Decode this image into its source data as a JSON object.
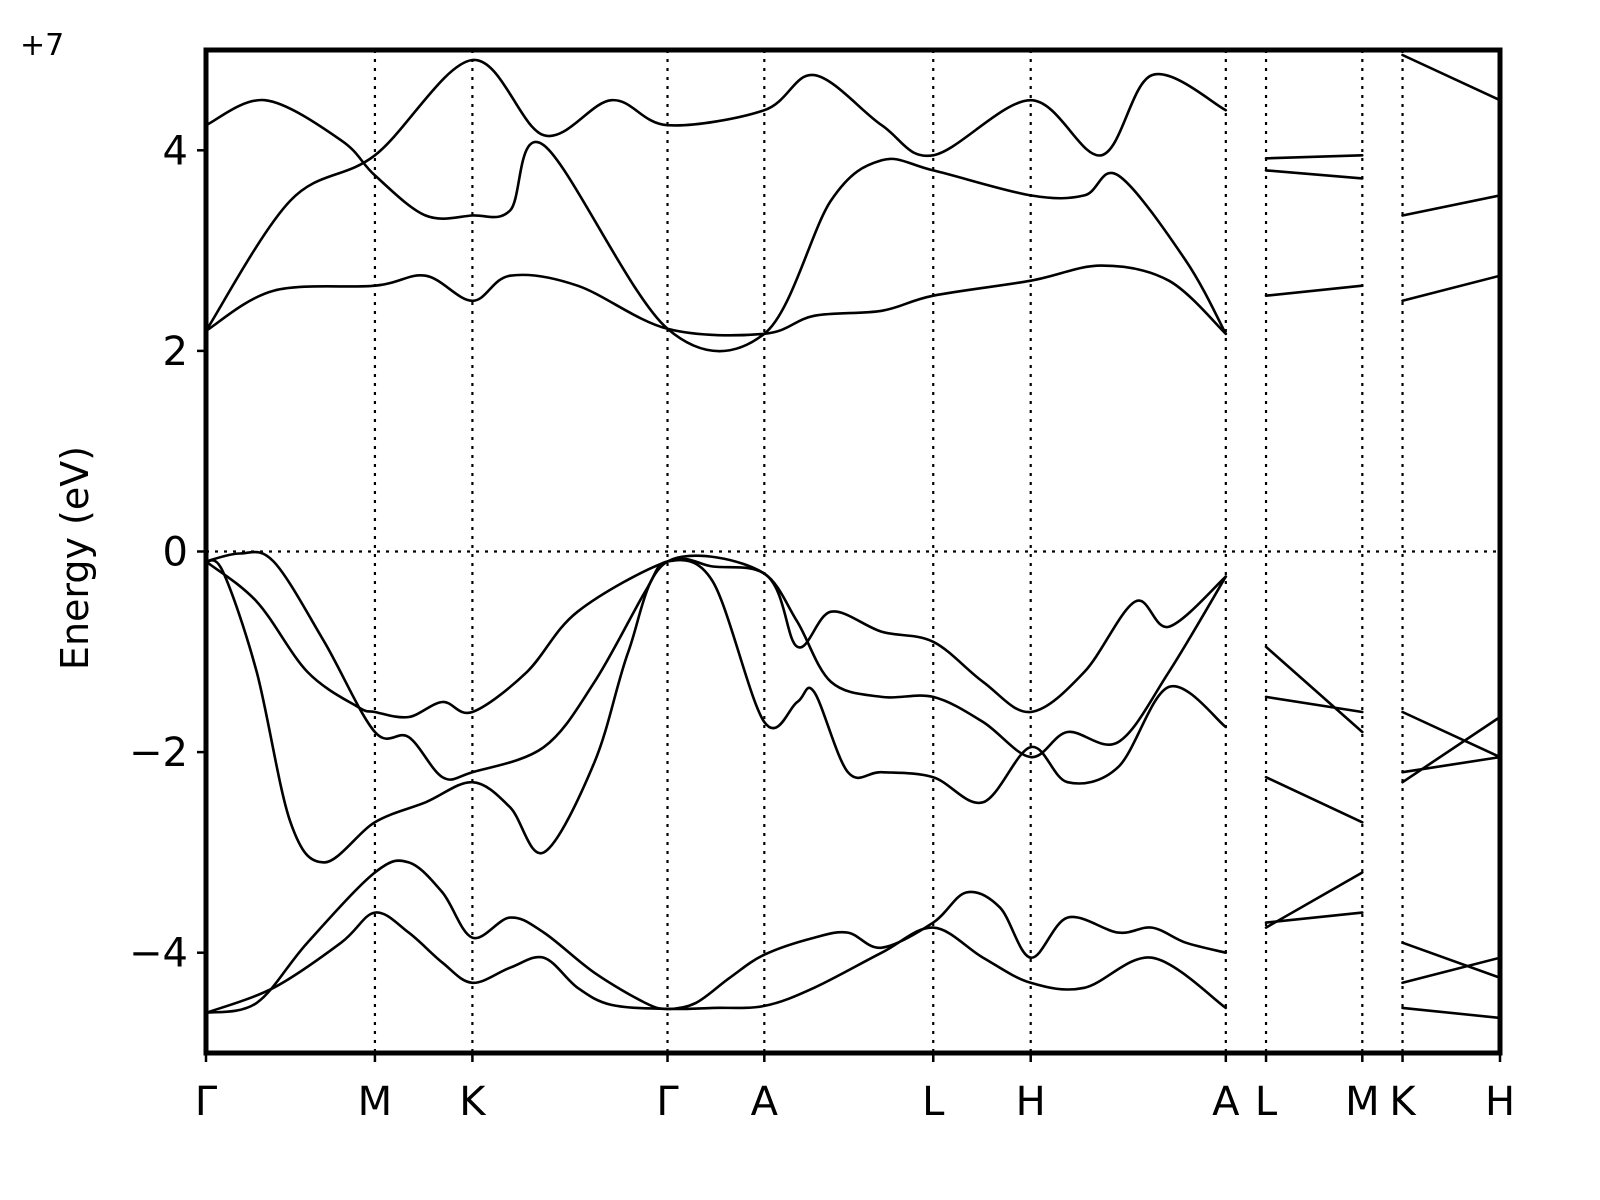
{
  "chart_data": {
    "type": "line",
    "title": "",
    "ylabel": "Energy (eV)",
    "xlabel": "",
    "y_offset_label": "+7",
    "ylim": [
      -5,
      5
    ],
    "yticks": [
      -4,
      -2,
      0,
      2,
      4
    ],
    "ytick_labels": [
      "−4",
      "−2",
      "0",
      "2",
      "4"
    ],
    "fermi_level": 0,
    "grid": false,
    "kpath_labels": [
      "Γ",
      "M",
      "K",
      "Γ",
      "A",
      "L",
      "H",
      "A",
      "L",
      "M",
      "K",
      "H"
    ],
    "kpath_positions": [
      0,
      1,
      1.577,
      2.732,
      3.305,
      4.305,
      4.882,
      6.037,
      6.275,
      6.845,
      7.083,
      7.66
    ],
    "path_breaks": [
      [
        6.037,
        6.275
      ],
      [
        6.845,
        7.083
      ]
    ],
    "x_range": [
      0,
      7.66
    ],
    "segments": [
      {
        "name": "Γ-M-K-Γ-A-L-H-A",
        "bands": [
          [
            [
              0,
              -4.6
            ],
            [
              0.4,
              -4.35
            ],
            [
              0.8,
              -3.9
            ],
            [
              1,
              -3.6
            ],
            [
              1.2,
              -3.8
            ],
            [
              1.4,
              -4.1
            ],
            [
              1.577,
              -4.3
            ],
            [
              1.8,
              -4.15
            ],
            [
              2,
              -4.05
            ],
            [
              2.2,
              -4.35
            ],
            [
              2.4,
              -4.52
            ],
            [
              2.732,
              -4.56
            ],
            [
              3.0,
              -4.55
            ],
            [
              3.305,
              -4.53
            ],
            [
              3.6,
              -4.35
            ],
            [
              4.0,
              -4.0
            ],
            [
              4.305,
              -3.75
            ],
            [
              4.6,
              -4.05
            ],
            [
              4.882,
              -4.3
            ],
            [
              5.2,
              -4.35
            ],
            [
              5.6,
              -4.05
            ],
            [
              6.037,
              -4.55
            ]
          ],
          [
            [
              0,
              -4.6
            ],
            [
              0.3,
              -4.5
            ],
            [
              0.6,
              -3.9
            ],
            [
              1,
              -3.2
            ],
            [
              1.2,
              -3.1
            ],
            [
              1.4,
              -3.4
            ],
            [
              1.577,
              -3.85
            ],
            [
              1.8,
              -3.65
            ],
            [
              2.0,
              -3.8
            ],
            [
              2.3,
              -4.2
            ],
            [
              2.6,
              -4.5
            ],
            [
              2.732,
              -4.56
            ],
            [
              2.9,
              -4.5
            ],
            [
              3.1,
              -4.25
            ],
            [
              3.305,
              -4.02
            ],
            [
              3.6,
              -3.85
            ],
            [
              3.8,
              -3.8
            ],
            [
              4.0,
              -3.95
            ],
            [
              4.305,
              -3.7
            ],
            [
              4.5,
              -3.4
            ],
            [
              4.7,
              -3.55
            ],
            [
              4.882,
              -4.05
            ],
            [
              5.1,
              -3.65
            ],
            [
              5.4,
              -3.8
            ],
            [
              5.6,
              -3.75
            ],
            [
              5.8,
              -3.9
            ],
            [
              6.037,
              -4.0
            ]
          ],
          [
            [
              0,
              -0.1
            ],
            [
              0.3,
              -0.5
            ],
            [
              0.6,
              -1.2
            ],
            [
              0.9,
              -1.55
            ],
            [
              1,
              -1.6
            ],
            [
              1.2,
              -1.65
            ],
            [
              1.4,
              -1.5
            ],
            [
              1.577,
              -1.6
            ],
            [
              1.9,
              -1.2
            ],
            [
              2.2,
              -0.6
            ],
            [
              2.732,
              -0.1
            ],
            [
              3.0,
              -0.15
            ],
            [
              3.305,
              -0.22
            ],
            [
              3.5,
              -0.7
            ],
            [
              3.7,
              -1.3
            ],
            [
              4.0,
              -1.45
            ],
            [
              4.305,
              -1.45
            ],
            [
              4.6,
              -1.7
            ],
            [
              4.882,
              -2.05
            ],
            [
              5.1,
              -1.8
            ],
            [
              5.4,
              -1.9
            ],
            [
              5.7,
              -1.2
            ],
            [
              6.037,
              -0.25
            ]
          ],
          [
            [
              0,
              -0.1
            ],
            [
              0.2,
              -0.02
            ],
            [
              0.4,
              -0.1
            ],
            [
              0.7,
              -0.9
            ],
            [
              1,
              -1.8
            ],
            [
              1.2,
              -1.85
            ],
            [
              1.4,
              -2.25
            ],
            [
              1.577,
              -2.2
            ],
            [
              2.0,
              -1.95
            ],
            [
              2.3,
              -1.3
            ],
            [
              2.6,
              -0.4
            ],
            [
              2.732,
              -0.1
            ],
            [
              3.0,
              -0.3
            ],
            [
              3.305,
              -1.7
            ],
            [
              3.5,
              -1.5
            ],
            [
              3.6,
              -1.4
            ],
            [
              3.8,
              -2.2
            ],
            [
              4.0,
              -2.2
            ],
            [
              4.305,
              -2.25
            ],
            [
              4.6,
              -2.5
            ],
            [
              4.882,
              -1.95
            ],
            [
              5.1,
              -2.3
            ],
            [
              5.4,
              -2.15
            ],
            [
              5.7,
              -1.35
            ],
            [
              6.037,
              -1.75
            ]
          ],
          [
            [
              0,
              -0.1
            ],
            [
              0.1,
              -0.2
            ],
            [
              0.3,
              -1.2
            ],
            [
              0.5,
              -2.7
            ],
            [
              0.7,
              -3.1
            ],
            [
              1,
              -2.7
            ],
            [
              1.3,
              -2.5
            ],
            [
              1.577,
              -2.3
            ],
            [
              1.8,
              -2.55
            ],
            [
              2.0,
              -3.0
            ],
            [
              2.3,
              -2.1
            ],
            [
              2.5,
              -1.0
            ],
            [
              2.732,
              -0.1
            ],
            [
              3.305,
              -0.22
            ],
            [
              3.5,
              -0.95
            ],
            [
              3.7,
              -0.6
            ],
            [
              4.0,
              -0.8
            ],
            [
              4.305,
              -0.9
            ],
            [
              4.6,
              -1.3
            ],
            [
              4.882,
              -1.6
            ],
            [
              5.2,
              -1.2
            ],
            [
              5.5,
              -0.5
            ],
            [
              5.7,
              -0.75
            ],
            [
              6.037,
              -0.25
            ]
          ],
          [
            [
              0,
              2.2
            ],
            [
              0.4,
              2.6
            ],
            [
              1,
              2.65
            ],
            [
              1.3,
              2.75
            ],
            [
              1.577,
              2.5
            ],
            [
              1.8,
              2.75
            ],
            [
              2.2,
              2.65
            ],
            [
              2.732,
              2.22
            ],
            [
              3.305,
              2.17
            ],
            [
              3.6,
              2.35
            ],
            [
              4.0,
              2.4
            ],
            [
              4.305,
              2.55
            ],
            [
              4.882,
              2.7
            ],
            [
              5.3,
              2.85
            ],
            [
              5.7,
              2.7
            ],
            [
              6.037,
              2.17
            ]
          ],
          [
            [
              0,
              2.2
            ],
            [
              0.5,
              3.5
            ],
            [
              1,
              3.95
            ],
            [
              1.577,
              4.9
            ],
            [
              2.0,
              4.15
            ],
            [
              2.4,
              4.5
            ],
            [
              2.732,
              4.25
            ],
            [
              3.305,
              4.4
            ],
            [
              3.6,
              4.75
            ],
            [
              4.0,
              4.25
            ],
            [
              4.305,
              3.95
            ],
            [
              4.882,
              4.5
            ],
            [
              5.3,
              3.95
            ],
            [
              5.6,
              4.75
            ],
            [
              6.037,
              4.4
            ]
          ],
          [
            [
              0,
              4.25
            ],
            [
              0.35,
              4.5
            ],
            [
              0.8,
              4.1
            ],
            [
              1,
              3.75
            ],
            [
              1.3,
              3.35
            ],
            [
              1.577,
              3.35
            ],
            [
              1.8,
              3.4
            ],
            [
              2.0,
              4.05
            ],
            [
              2.732,
              2.22
            ],
            [
              3.305,
              2.17
            ],
            [
              3.7,
              3.5
            ],
            [
              4.0,
              3.9
            ],
            [
              4.305,
              3.8
            ],
            [
              4.882,
              3.55
            ],
            [
              5.2,
              3.55
            ],
            [
              5.4,
              3.75
            ],
            [
              5.8,
              2.9
            ],
            [
              6.037,
              2.17
            ]
          ]
        ]
      },
      {
        "name": "L-M",
        "bands": [
          [
            [
              6.275,
              -3.7
            ],
            [
              6.845,
              -3.6
            ]
          ],
          [
            [
              6.275,
              -3.75
            ],
            [
              6.845,
              -3.2
            ]
          ],
          [
            [
              6.275,
              -2.25
            ],
            [
              6.845,
              -2.7
            ]
          ],
          [
            [
              6.275,
              -1.45
            ],
            [
              6.845,
              -1.6
            ]
          ],
          [
            [
              6.275,
              -0.95
            ],
            [
              6.845,
              -1.8
            ]
          ],
          [
            [
              6.275,
              2.55
            ],
            [
              6.845,
              2.65
            ]
          ],
          [
            [
              6.275,
              3.8
            ],
            [
              6.845,
              3.72
            ]
          ],
          [
            [
              6.275,
              3.92
            ],
            [
              6.845,
              3.95
            ]
          ]
        ]
      },
      {
        "name": "K-H",
        "bands": [
          [
            [
              7.083,
              -4.55
            ],
            [
              7.66,
              -4.65
            ]
          ],
          [
            [
              7.083,
              -4.3
            ],
            [
              7.66,
              -4.05
            ]
          ],
          [
            [
              7.083,
              -3.9
            ],
            [
              7.66,
              -4.25
            ]
          ],
          [
            [
              7.083,
              -2.3
            ],
            [
              7.66,
              -1.65
            ]
          ],
          [
            [
              7.083,
              -2.2
            ],
            [
              7.66,
              -2.05
            ]
          ],
          [
            [
              7.083,
              -1.6
            ],
            [
              7.66,
              -2.05
            ]
          ],
          [
            [
              7.083,
              2.5
            ],
            [
              7.66,
              2.75
            ]
          ],
          [
            [
              7.083,
              3.35
            ],
            [
              7.66,
              3.55
            ]
          ],
          [
            [
              7.083,
              4.95
            ],
            [
              7.66,
              4.5
            ]
          ]
        ]
      }
    ]
  }
}
